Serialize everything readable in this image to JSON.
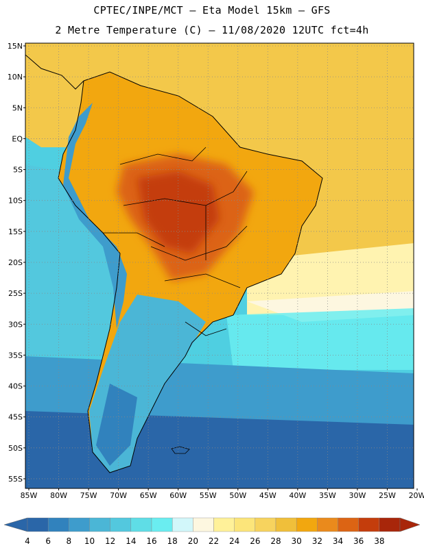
{
  "header": {
    "line1": "CPTEC/INPE/MCT –  Eta Model 15km – GFS",
    "line2": "2 Metre Temperature (C) – 11/08/2020 12UTC fct=4h"
  },
  "map": {
    "lat_labels": [
      "15N",
      "10N",
      "5N",
      "EQ",
      "5S",
      "10S",
      "15S",
      "20S",
      "25S",
      "30S",
      "35S",
      "40S",
      "45S",
      "50S",
      "55S"
    ],
    "lon_labels": [
      "85W",
      "80W",
      "75W",
      "70W",
      "65W",
      "60W",
      "55W",
      "50W",
      "45W",
      "40W",
      "35W",
      "30W",
      "25W",
      "20W"
    ],
    "lat_range": [
      15,
      -57
    ],
    "lon_range": [
      -85,
      -20
    ]
  },
  "colorbar": {
    "ticks": [
      "4",
      "6",
      "8",
      "10",
      "12",
      "14",
      "16",
      "18",
      "20",
      "22",
      "24",
      "26",
      "28",
      "30",
      "32",
      "34",
      "36",
      "38"
    ],
    "colors": [
      "#2a66a8",
      "#3182bd",
      "#3e9ccc",
      "#4bb6d6",
      "#53c8de",
      "#5fdde6",
      "#6aedf0",
      "#d2f7fa",
      "#fdf7e0",
      "#fff199",
      "#fce57a",
      "#f7d35e",
      "#f0bf3a",
      "#f2a70f",
      "#ea8a1c",
      "#dc6414",
      "#c43d0c",
      "#a8260a"
    ]
  }
}
